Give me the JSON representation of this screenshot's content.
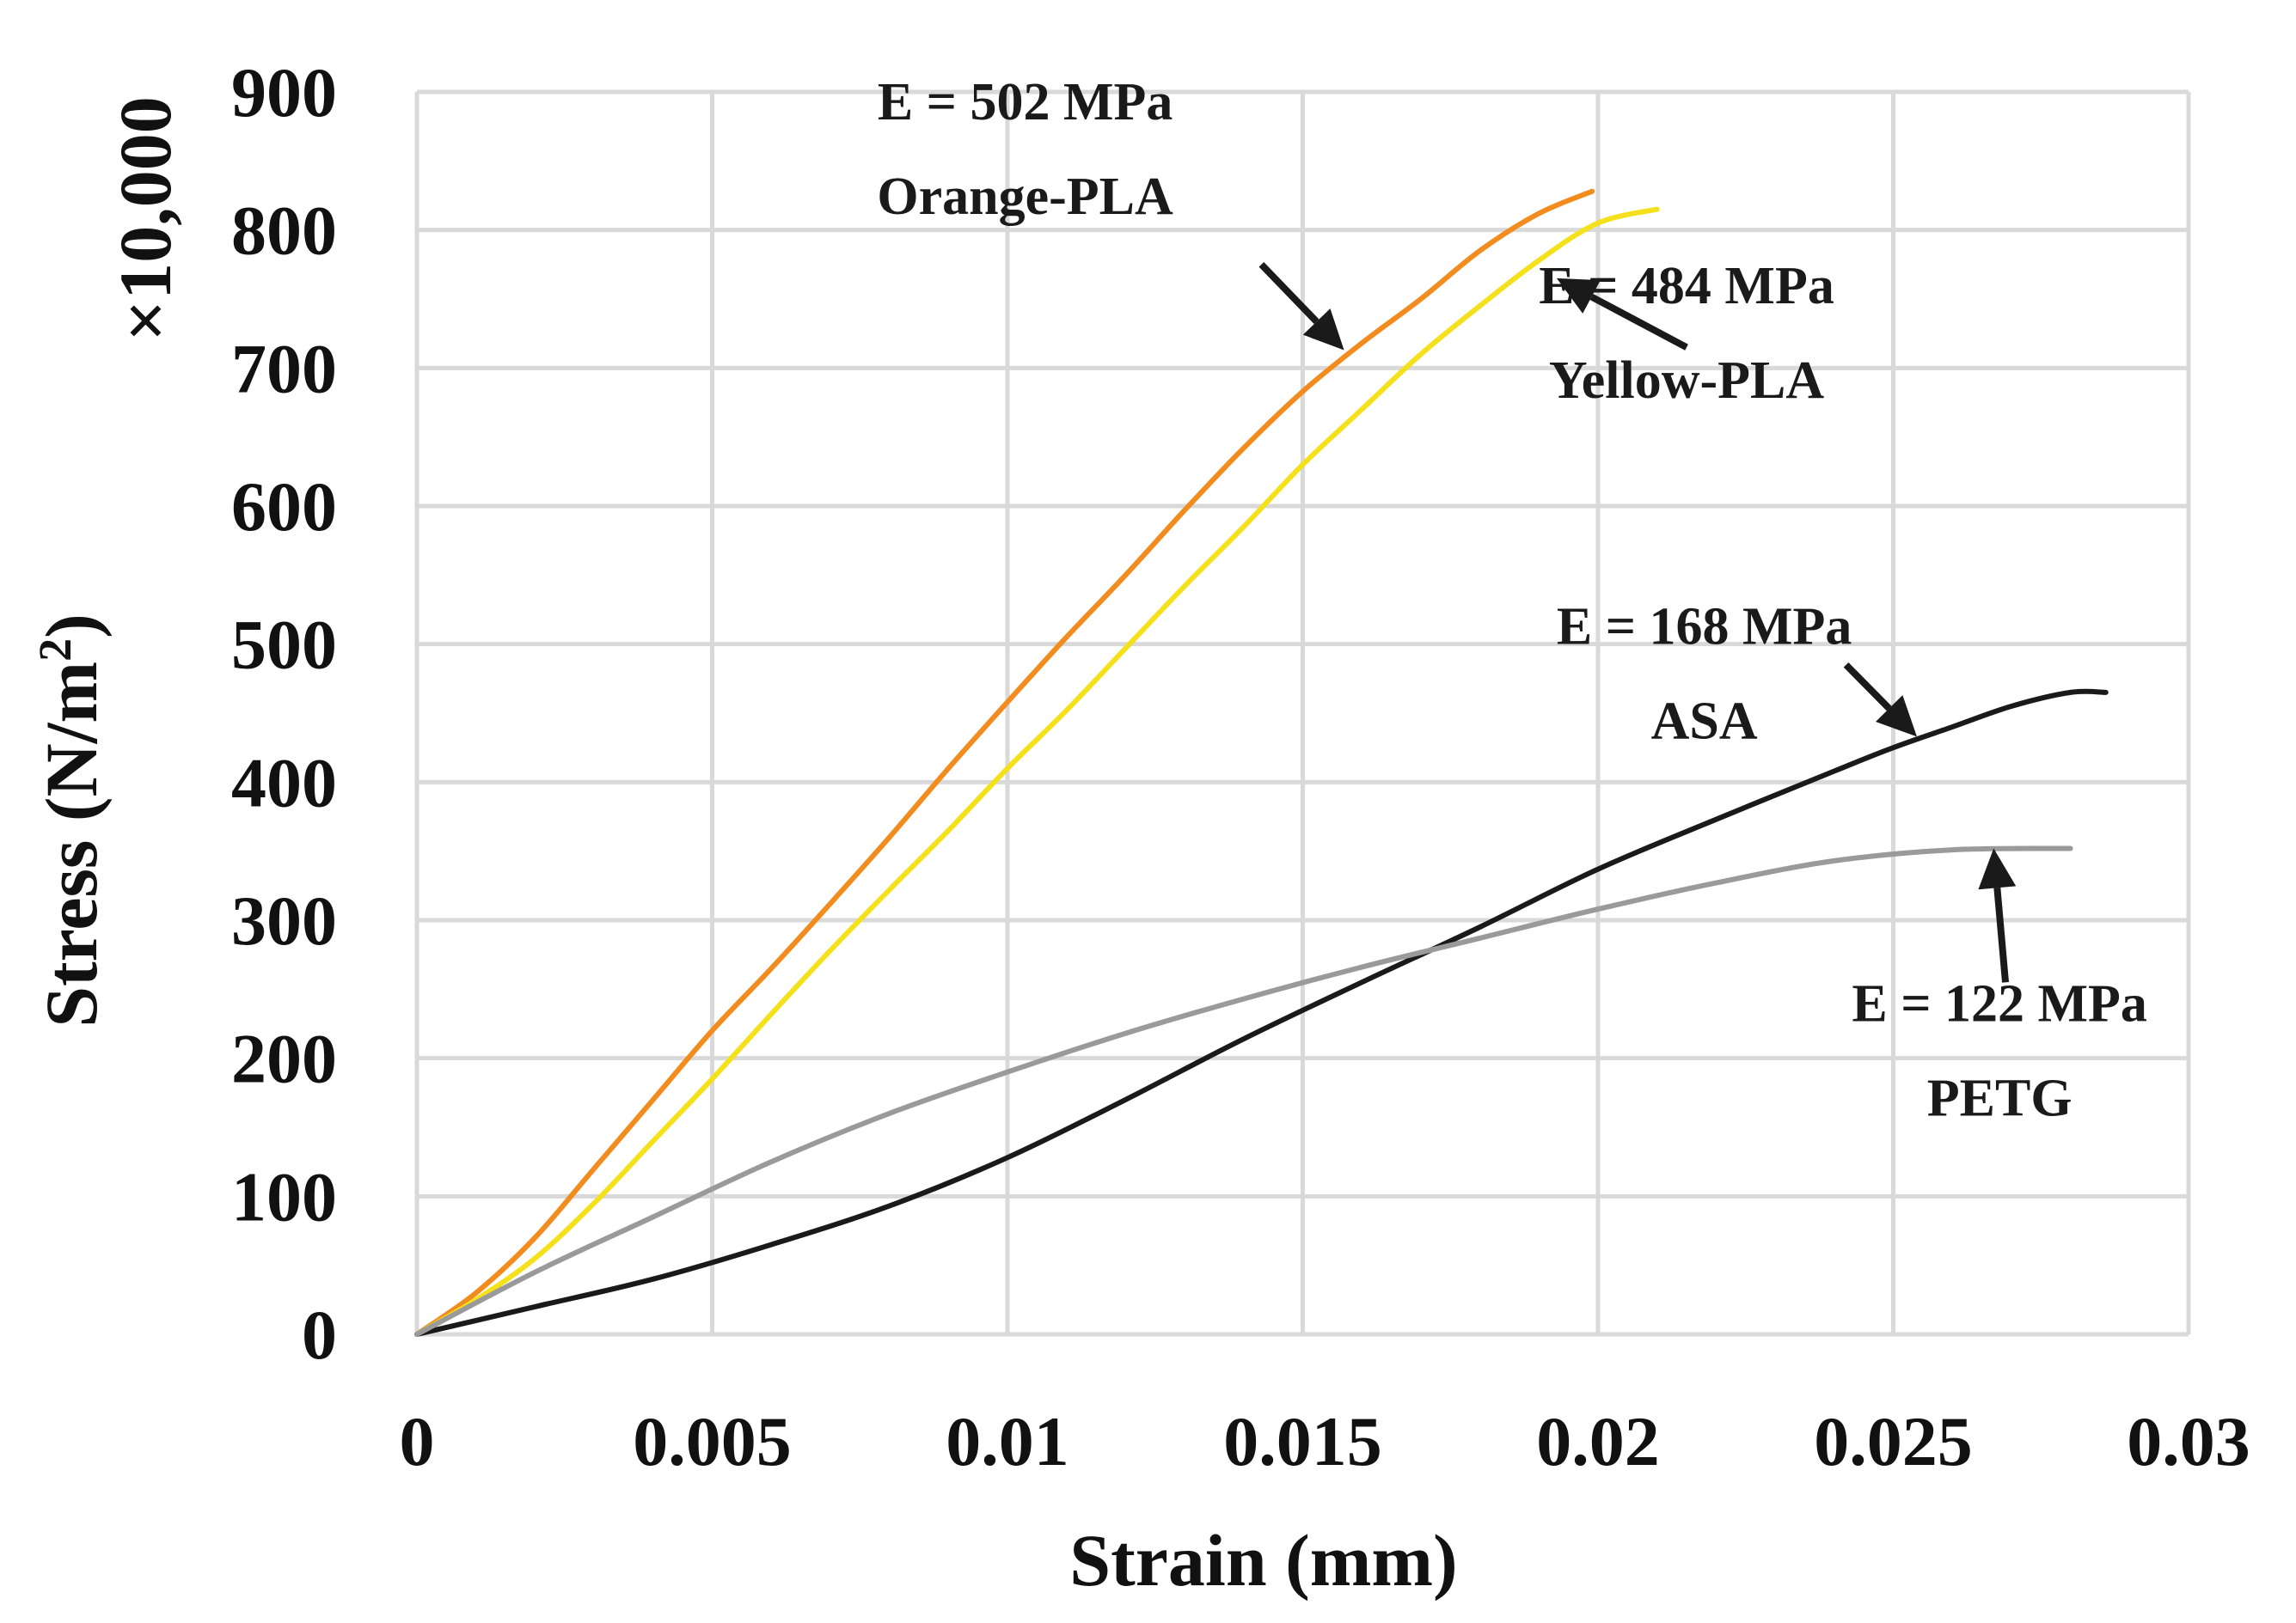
{
  "chart_data": {
    "type": "line",
    "title": "",
    "xlabel": "Strain (mm)",
    "ylabel": "Stress (N/m²)",
    "ylabel_parts": {
      "main": "Stress (N/m",
      "sup": "2",
      "close": ")"
    },
    "y_multiplier": "×10,000",
    "xlim": [
      0,
      0.03
    ],
    "ylim": [
      0,
      900
    ],
    "xticks": [
      0,
      0.005,
      0.01,
      0.015,
      0.02,
      0.025,
      0.03
    ],
    "xtick_labels": [
      "0",
      "0.005",
      "0.01",
      "0.015",
      "0.02",
      "0.025",
      "0.03"
    ],
    "yticks": [
      0,
      100,
      200,
      300,
      400,
      500,
      600,
      700,
      800,
      900
    ],
    "ytick_labels": [
      "0",
      "100",
      "200",
      "300",
      "400",
      "500",
      "600",
      "700",
      "800",
      "900"
    ],
    "grid": true,
    "series": [
      {
        "name": "Orange-PLA",
        "color": "#f28c1e",
        "points": [
          [
            0,
            0
          ],
          [
            0.001,
            30
          ],
          [
            0.002,
            70
          ],
          [
            0.003,
            120
          ],
          [
            0.004,
            170
          ],
          [
            0.005,
            220
          ],
          [
            0.006,
            265
          ],
          [
            0.007,
            312
          ],
          [
            0.008,
            360
          ],
          [
            0.009,
            410
          ],
          [
            0.01,
            458
          ],
          [
            0.011,
            505
          ],
          [
            0.012,
            550
          ],
          [
            0.013,
            597
          ],
          [
            0.014,
            642
          ],
          [
            0.015,
            683
          ],
          [
            0.016,
            718
          ],
          [
            0.017,
            750
          ],
          [
            0.018,
            785
          ],
          [
            0.019,
            812
          ],
          [
            0.0199,
            828
          ]
        ]
      },
      {
        "name": "Yellow-PLA",
        "color": "#f5e11b",
        "points": [
          [
            0,
            0
          ],
          [
            0.001,
            25
          ],
          [
            0.002,
            55
          ],
          [
            0.003,
            95
          ],
          [
            0.004,
            140
          ],
          [
            0.005,
            185
          ],
          [
            0.006,
            232
          ],
          [
            0.007,
            278
          ],
          [
            0.008,
            322
          ],
          [
            0.009,
            365
          ],
          [
            0.01,
            410
          ],
          [
            0.011,
            452
          ],
          [
            0.012,
            497
          ],
          [
            0.013,
            542
          ],
          [
            0.014,
            585
          ],
          [
            0.015,
            630
          ],
          [
            0.016,
            670
          ],
          [
            0.017,
            710
          ],
          [
            0.018,
            745
          ],
          [
            0.019,
            778
          ],
          [
            0.02,
            805
          ],
          [
            0.021,
            815
          ]
        ]
      },
      {
        "name": "ASA",
        "color": "#1a1a1a",
        "points": [
          [
            0,
            0
          ],
          [
            0.002,
            20
          ],
          [
            0.004,
            40
          ],
          [
            0.006,
            65
          ],
          [
            0.008,
            93
          ],
          [
            0.01,
            128
          ],
          [
            0.012,
            170
          ],
          [
            0.014,
            214
          ],
          [
            0.016,
            255
          ],
          [
            0.018,
            295
          ],
          [
            0.02,
            337
          ],
          [
            0.022,
            373
          ],
          [
            0.024,
            408
          ],
          [
            0.025,
            425
          ],
          [
            0.026,
            440
          ],
          [
            0.027,
            455
          ],
          [
            0.028,
            465
          ],
          [
            0.0286,
            465
          ]
        ]
      },
      {
        "name": "PETG",
        "color": "#9a9a9a",
        "points": [
          [
            0,
            0
          ],
          [
            0.002,
            45
          ],
          [
            0.004,
            85
          ],
          [
            0.006,
            125
          ],
          [
            0.008,
            160
          ],
          [
            0.01,
            190
          ],
          [
            0.012,
            218
          ],
          [
            0.014,
            243
          ],
          [
            0.016,
            266
          ],
          [
            0.018,
            287
          ],
          [
            0.02,
            308
          ],
          [
            0.022,
            327
          ],
          [
            0.024,
            343
          ],
          [
            0.026,
            351
          ],
          [
            0.028,
            352
          ]
        ]
      }
    ],
    "annotations": [
      {
        "id": "orange",
        "line1": "E = 502 MPa",
        "line2": "Orange-PLA",
        "target": [
          0.0157,
          713
        ],
        "text_at": [
          0.0103,
          880
        ],
        "tail_at": [
          0.0143,
          775
        ]
      },
      {
        "id": "yellow",
        "line1": "E = 484 MPa",
        "line2": "Yellow-PLA",
        "target": [
          0.0193,
          765
        ],
        "text_at": [
          0.0215,
          747
        ],
        "tail_at": [
          0.0215,
          715
        ]
      },
      {
        "id": "asa",
        "line1": "E = 168 MPa",
        "line2": "ASA",
        "target": [
          0.0254,
          433
        ],
        "text_at": [
          0.0218,
          500
        ],
        "tail_at": [
          0.0242,
          485
        ]
      },
      {
        "id": "petg",
        "line1": "E = 122 MPa",
        "line2": "PETG",
        "target": [
          0.0267,
          352
        ],
        "text_at": [
          0.0268,
          227
        ],
        "tail_at": [
          0.0269,
          255
        ]
      }
    ]
  }
}
